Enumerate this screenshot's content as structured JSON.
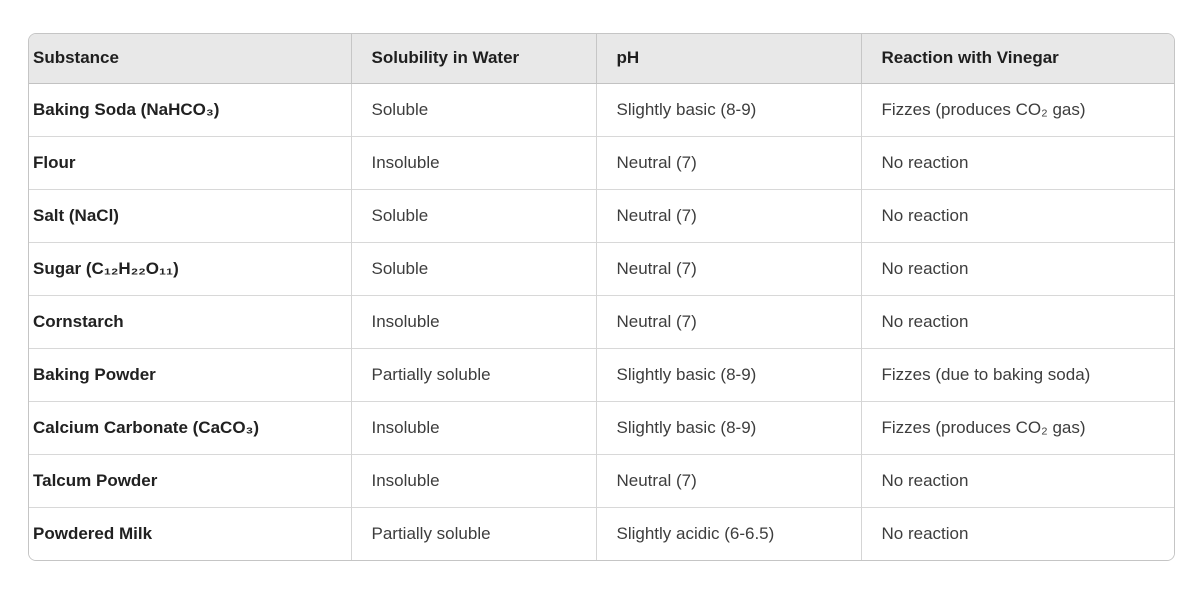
{
  "table": {
    "headers": [
      "Substance",
      "Solubility in Water",
      "pH",
      "Reaction with Vinegar"
    ],
    "rows": [
      {
        "substance": "Baking Soda (NaHCO₃)",
        "solubility": "Soluble",
        "ph": "Slightly basic (8-9)",
        "reaction": "Fizzes (produces CO₂ gas)"
      },
      {
        "substance": "Flour",
        "solubility": "Insoluble",
        "ph": "Neutral (7)",
        "reaction": "No reaction"
      },
      {
        "substance": "Salt (NaCl)",
        "solubility": "Soluble",
        "ph": "Neutral (7)",
        "reaction": "No reaction"
      },
      {
        "substance": "Sugar (C₁₂H₂₂O₁₁)",
        "solubility": "Soluble",
        "ph": "Neutral (7)",
        "reaction": "No reaction"
      },
      {
        "substance": "Cornstarch",
        "solubility": "Insoluble",
        "ph": "Neutral (7)",
        "reaction": "No reaction"
      },
      {
        "substance": "Baking Powder",
        "solubility": "Partially soluble",
        "ph": "Slightly basic (8-9)",
        "reaction": "Fizzes (due to baking soda)"
      },
      {
        "substance": "Calcium Carbonate (CaCO₃)",
        "solubility": "Insoluble",
        "ph": "Slightly basic (8-9)",
        "reaction": "Fizzes (produces CO₂ gas)"
      },
      {
        "substance": "Talcum Powder",
        "solubility": "Insoluble",
        "ph": "Neutral (7)",
        "reaction": "No reaction"
      },
      {
        "substance": "Powdered Milk",
        "solubility": "Partially soluble",
        "ph": "Slightly acidic (6-6.5)",
        "reaction": "No reaction"
      }
    ],
    "colors": {
      "header_bg": "#e8e8e8",
      "border": "#c5c5c5",
      "row_divider": "#d8d8d8",
      "header_text": "#1f1f1f",
      "body_text": "#3d3d3d"
    }
  }
}
